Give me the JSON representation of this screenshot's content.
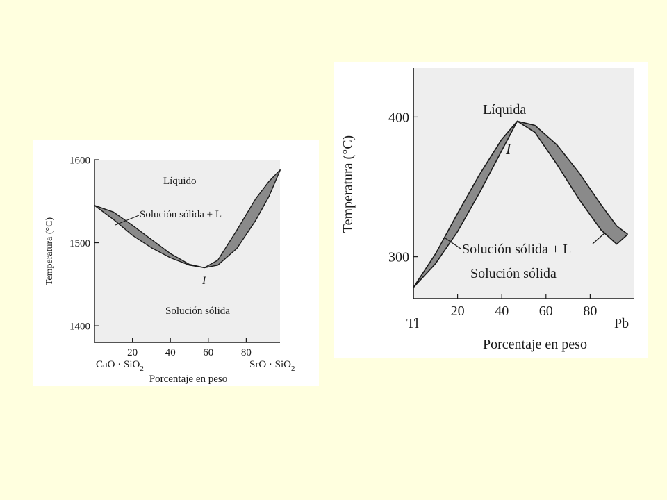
{
  "page": {
    "background": "#ffffdf",
    "panel_background": "#ffffff",
    "plot_background": "#eeeeee",
    "band_fill": "#8a8a8a"
  },
  "chart_data": [
    {
      "type": "line",
      "chart_kind": "binary phase diagram (solid solution with temperature minimum)",
      "xlabel": "Porcentaje en peso",
      "ylabel": "Temperatura (°C)",
      "xlim": [
        0,
        100
      ],
      "ylim": [
        1380,
        1600
      ],
      "x_ticks": [
        20,
        40,
        60,
        80
      ],
      "y_ticks": [
        1400,
        1500,
        1600
      ],
      "component_left": "CaO · SiO",
      "component_right": "SrO · SiO",
      "component_subscript": "2",
      "grid": false,
      "regions": {
        "top": "Líquido",
        "band": "Solución sólida + L",
        "bottom": "Solución sólida"
      },
      "point_label": "I",
      "minimum_point": {
        "x": 58,
        "y": 1470
      },
      "series": [
        {
          "role": "liquidus",
          "points": [
            [
              0,
              1545
            ],
            [
              10,
              1537
            ],
            [
              20,
              1521
            ],
            [
              30,
              1504
            ],
            [
              40,
              1487
            ],
            [
              50,
              1474
            ],
            [
              58,
              1470
            ],
            [
              65,
              1479
            ],
            [
              75,
              1515
            ],
            [
              85,
              1553
            ],
            [
              92,
              1574
            ],
            [
              98,
              1588
            ]
          ]
        },
        {
          "role": "solidus",
          "points": [
            [
              0,
              1545
            ],
            [
              10,
              1528
            ],
            [
              20,
              1509
            ],
            [
              30,
              1494
            ],
            [
              40,
              1482
            ],
            [
              50,
              1473
            ],
            [
              58,
              1470
            ],
            [
              65,
              1473
            ],
            [
              75,
              1493
            ],
            [
              85,
              1527
            ],
            [
              92,
              1556
            ],
            [
              98,
              1588
            ]
          ]
        }
      ]
    },
    {
      "type": "line",
      "chart_kind": "binary phase diagram (solid solution with temperature maximum)",
      "xlabel": "Porcentaje en peso",
      "ylabel": "Temperatura (°C)",
      "xlim": [
        0,
        100
      ],
      "ylim": [
        270,
        435
      ],
      "x_ticks": [
        20,
        40,
        60,
        80
      ],
      "y_ticks": [
        300,
        400
      ],
      "component_left": "Tl",
      "component_right": "Pb",
      "grid": false,
      "regions": {
        "top": "Líquida",
        "band": "Solución sólida + L",
        "bottom": "Solución sólida"
      },
      "point_label": "I",
      "maximum_point": {
        "x": 47,
        "y": 397
      },
      "series": [
        {
          "role": "liquidus",
          "points": [
            [
              0,
              278
            ],
            [
              10,
              302
            ],
            [
              20,
              331
            ],
            [
              30,
              359
            ],
            [
              40,
              384
            ],
            [
              47,
              397
            ],
            [
              55,
              394
            ],
            [
              65,
              380
            ],
            [
              75,
              360
            ],
            [
              85,
              337
            ],
            [
              92,
              322
            ],
            [
              97,
              316
            ]
          ]
        },
        {
          "role": "solidus",
          "points": [
            [
              0,
              278
            ],
            [
              10,
              295
            ],
            [
              20,
              318
            ],
            [
              30,
              346
            ],
            [
              40,
              376
            ],
            [
              47,
              397
            ],
            [
              55,
              389
            ],
            [
              65,
              366
            ],
            [
              75,
              341
            ],
            [
              85,
              319
            ],
            [
              92,
              309
            ],
            [
              97,
              316
            ]
          ]
        }
      ]
    }
  ]
}
